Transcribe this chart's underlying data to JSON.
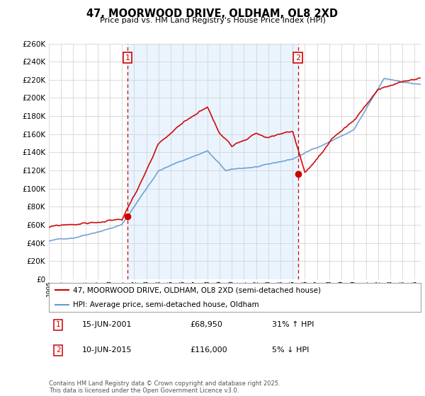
{
  "title": "47, MOORWOOD DRIVE, OLDHAM, OL8 2XD",
  "subtitle": "Price paid vs. HM Land Registry's House Price Index (HPI)",
  "legend_line1": "47, MOORWOOD DRIVE, OLDHAM, OL8 2XD (semi-detached house)",
  "legend_line2": "HPI: Average price, semi-detached house, Oldham",
  "annotation1_date": "15-JUN-2001",
  "annotation1_price": "£68,950",
  "annotation1_hpi": "31% ↑ HPI",
  "annotation2_date": "10-JUN-2015",
  "annotation2_price": "£116,000",
  "annotation2_hpi": "5% ↓ HPI",
  "footer": "Contains HM Land Registry data © Crown copyright and database right 2025.\nThis data is licensed under the Open Government Licence v3.0.",
  "ylim": [
    0,
    260000
  ],
  "red_line_color": "#cc0000",
  "blue_line_color": "#6699cc",
  "blue_fill_color": "#ddeeff",
  "vline_color": "#cc0000",
  "annotation_box_color": "#cc0000",
  "grid_color": "#cccccc",
  "background_color": "#ffffff",
  "sale1_year": 2001.45,
  "sale1_price": 68950,
  "sale2_year": 2015.44,
  "sale2_price": 116000
}
